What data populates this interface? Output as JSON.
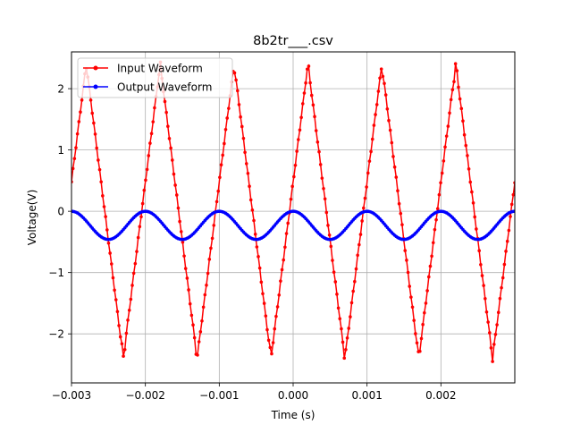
{
  "chart_data": {
    "type": "line",
    "title": "8b2tr___.csv",
    "xlabel": "Time (s)",
    "ylabel": "Voltage(V)",
    "xlim": [
      -0.003,
      0.003
    ],
    "ylim": [
      -2.8,
      2.6
    ],
    "grid": true,
    "legend_position": "top-left",
    "x_ticks": [
      -0.003,
      -0.002,
      -0.001,
      0.0,
      0.001,
      0.002
    ],
    "x_tick_labels": [
      "−0.003",
      "−0.002",
      "−0.001",
      "0.000",
      "0.001",
      "0.002"
    ],
    "y_ticks": [
      -2,
      -1,
      0,
      1,
      2
    ],
    "y_tick_labels": [
      "−2",
      "−1",
      "0",
      "1",
      "2"
    ],
    "series": [
      {
        "name": "Input Waveform",
        "color": "#ff0000",
        "marker": "circle",
        "samples": 300,
        "form": "triangle",
        "period_s": 0.001,
        "amplitude_v": 2.4,
        "offset_v": 0.0,
        "first_peak_s": -0.0028,
        "x": [
          -0.003,
          -0.0028,
          -0.0023,
          -0.0018,
          -0.0013,
          -0.0008,
          -0.0003,
          0.0002,
          0.0007,
          0.0012,
          0.0017,
          0.0022,
          0.0027,
          0.003
        ],
        "y": [
          0.35,
          2.3,
          -2.55,
          2.3,
          -2.45,
          2.35,
          -2.45,
          2.3,
          -2.45,
          2.4,
          -2.45,
          2.3,
          -2.5,
          0.15
        ]
      },
      {
        "name": "Output Waveform",
        "color": "#0000ff",
        "marker": "circle",
        "samples": 300,
        "form": "sine",
        "period_s": 0.001,
        "amplitude_v": 0.23,
        "offset_v": -0.23,
        "x": [
          -0.003,
          -0.0025,
          -0.002,
          -0.0015,
          -0.001,
          -0.0005,
          0.0,
          0.0005,
          0.001,
          0.0015,
          0.002,
          0.0025,
          0.003
        ],
        "y": [
          -0.02,
          -0.46,
          0.0,
          -0.46,
          0.0,
          -0.46,
          0.0,
          -0.46,
          0.0,
          -0.46,
          0.0,
          -0.46,
          0.0
        ]
      }
    ]
  }
}
